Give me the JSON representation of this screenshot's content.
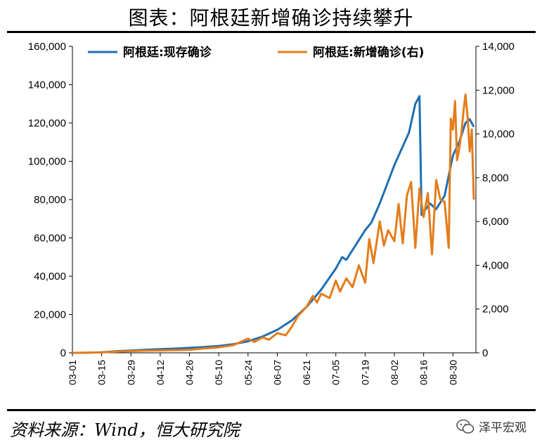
{
  "title": "图表：阿根廷新增确诊持续攀升",
  "source": "资料来源：Wind，恒大研究院",
  "brand": {
    "name": "泽平宏观",
    "icon": "wechat-icon"
  },
  "chart_data": {
    "type": "line",
    "grid": false,
    "legend_position": "top",
    "x_ticks": [
      "03-01",
      "03-15",
      "03-29",
      "04-12",
      "04-26",
      "05-10",
      "05-24",
      "06-07",
      "06-21",
      "07-05",
      "07-19",
      "08-02",
      "08-16",
      "08-30"
    ],
    "y_left": {
      "ylim": [
        0,
        160000
      ],
      "ticks": [
        "0",
        "20,000",
        "40,000",
        "60,000",
        "80,000",
        "100,000",
        "120,000",
        "140,000",
        "160,000"
      ]
    },
    "y_right": {
      "ylim": [
        0,
        14000
      ],
      "ticks": [
        "0",
        "2,000",
        "4,000",
        "6,000",
        "8,000",
        "10,000",
        "12,000",
        "14,000"
      ]
    },
    "series": [
      {
        "name": "阿根廷:现存确诊",
        "axis": "left",
        "color": "#1f6fb3",
        "points": [
          [
            "03-01",
            0
          ],
          [
            "03-08",
            50
          ],
          [
            "03-15",
            300
          ],
          [
            "03-22",
            800
          ],
          [
            "03-29",
            1200
          ],
          [
            "04-05",
            1600
          ],
          [
            "04-12",
            1900
          ],
          [
            "04-19",
            2200
          ],
          [
            "04-26",
            2600
          ],
          [
            "05-03",
            3000
          ],
          [
            "05-10",
            3600
          ],
          [
            "05-17",
            4500
          ],
          [
            "05-24",
            6000
          ],
          [
            "05-31",
            8500
          ],
          [
            "06-07",
            12000
          ],
          [
            "06-14",
            17000
          ],
          [
            "06-21",
            24000
          ],
          [
            "06-28",
            33000
          ],
          [
            "07-05",
            44000
          ],
          [
            "07-08",
            50000
          ],
          [
            "07-10",
            48500
          ],
          [
            "07-12",
            52000
          ],
          [
            "07-19",
            64000
          ],
          [
            "07-22",
            68000
          ],
          [
            "07-26",
            78000
          ],
          [
            "08-02",
            98000
          ],
          [
            "08-09",
            115000
          ],
          [
            "08-12",
            130000
          ],
          [
            "08-14",
            134000
          ],
          [
            "08-15",
            72000
          ],
          [
            "08-19",
            78000
          ],
          [
            "08-22",
            75000
          ],
          [
            "08-26",
            82000
          ],
          [
            "08-30",
            103000
          ],
          [
            "09-02",
            110000
          ],
          [
            "09-05",
            120000
          ],
          [
            "09-07",
            122000
          ],
          [
            "09-09",
            118000
          ]
        ]
      },
      {
        "name": "阿根廷:新增确诊(右)",
        "axis": "right",
        "color": "#e47c1b",
        "points": [
          [
            "03-01",
            0
          ],
          [
            "03-15",
            20
          ],
          [
            "03-22",
            50
          ],
          [
            "03-29",
            80
          ],
          [
            "04-05",
            100
          ],
          [
            "04-12",
            110
          ],
          [
            "04-19",
            120
          ],
          [
            "04-26",
            140
          ],
          [
            "05-03",
            200
          ],
          [
            "05-10",
            250
          ],
          [
            "05-17",
            350
          ],
          [
            "05-24",
            650
          ],
          [
            "05-27",
            500
          ],
          [
            "05-31",
            700
          ],
          [
            "06-03",
            600
          ],
          [
            "06-07",
            900
          ],
          [
            "06-11",
            800
          ],
          [
            "06-14",
            1200
          ],
          [
            "06-17",
            1700
          ],
          [
            "06-21",
            2100
          ],
          [
            "06-24",
            2600
          ],
          [
            "06-26",
            2300
          ],
          [
            "06-28",
            2700
          ],
          [
            "07-02",
            2500
          ],
          [
            "07-05",
            3300
          ],
          [
            "07-07",
            2800
          ],
          [
            "07-10",
            3400
          ],
          [
            "07-13",
            3000
          ],
          [
            "07-16",
            4000
          ],
          [
            "07-19",
            3200
          ],
          [
            "07-21",
            5200
          ],
          [
            "07-23",
            4100
          ],
          [
            "07-26",
            6000
          ],
          [
            "07-28",
            4900
          ],
          [
            "07-30",
            5600
          ],
          [
            "08-02",
            5100
          ],
          [
            "08-04",
            6800
          ],
          [
            "08-06",
            5000
          ],
          [
            "08-08",
            7200
          ],
          [
            "08-10",
            7800
          ],
          [
            "08-12",
            4800
          ],
          [
            "08-14",
            7500
          ],
          [
            "08-16",
            6200
          ],
          [
            "08-18",
            7300
          ],
          [
            "08-20",
            4500
          ],
          [
            "08-22",
            7900
          ],
          [
            "08-24",
            7000
          ],
          [
            "08-26",
            6900
          ],
          [
            "08-28",
            4800
          ],
          [
            "08-29",
            10700
          ],
          [
            "08-30",
            10200
          ],
          [
            "08-31",
            11500
          ],
          [
            "09-01",
            8800
          ],
          [
            "09-02",
            9300
          ],
          [
            "09-03",
            10000
          ],
          [
            "09-04",
            11000
          ],
          [
            "09-05",
            11800
          ],
          [
            "09-06",
            10800
          ],
          [
            "09-07",
            9200
          ],
          [
            "09-08",
            10200
          ],
          [
            "09-09",
            7000
          ]
        ]
      }
    ]
  }
}
